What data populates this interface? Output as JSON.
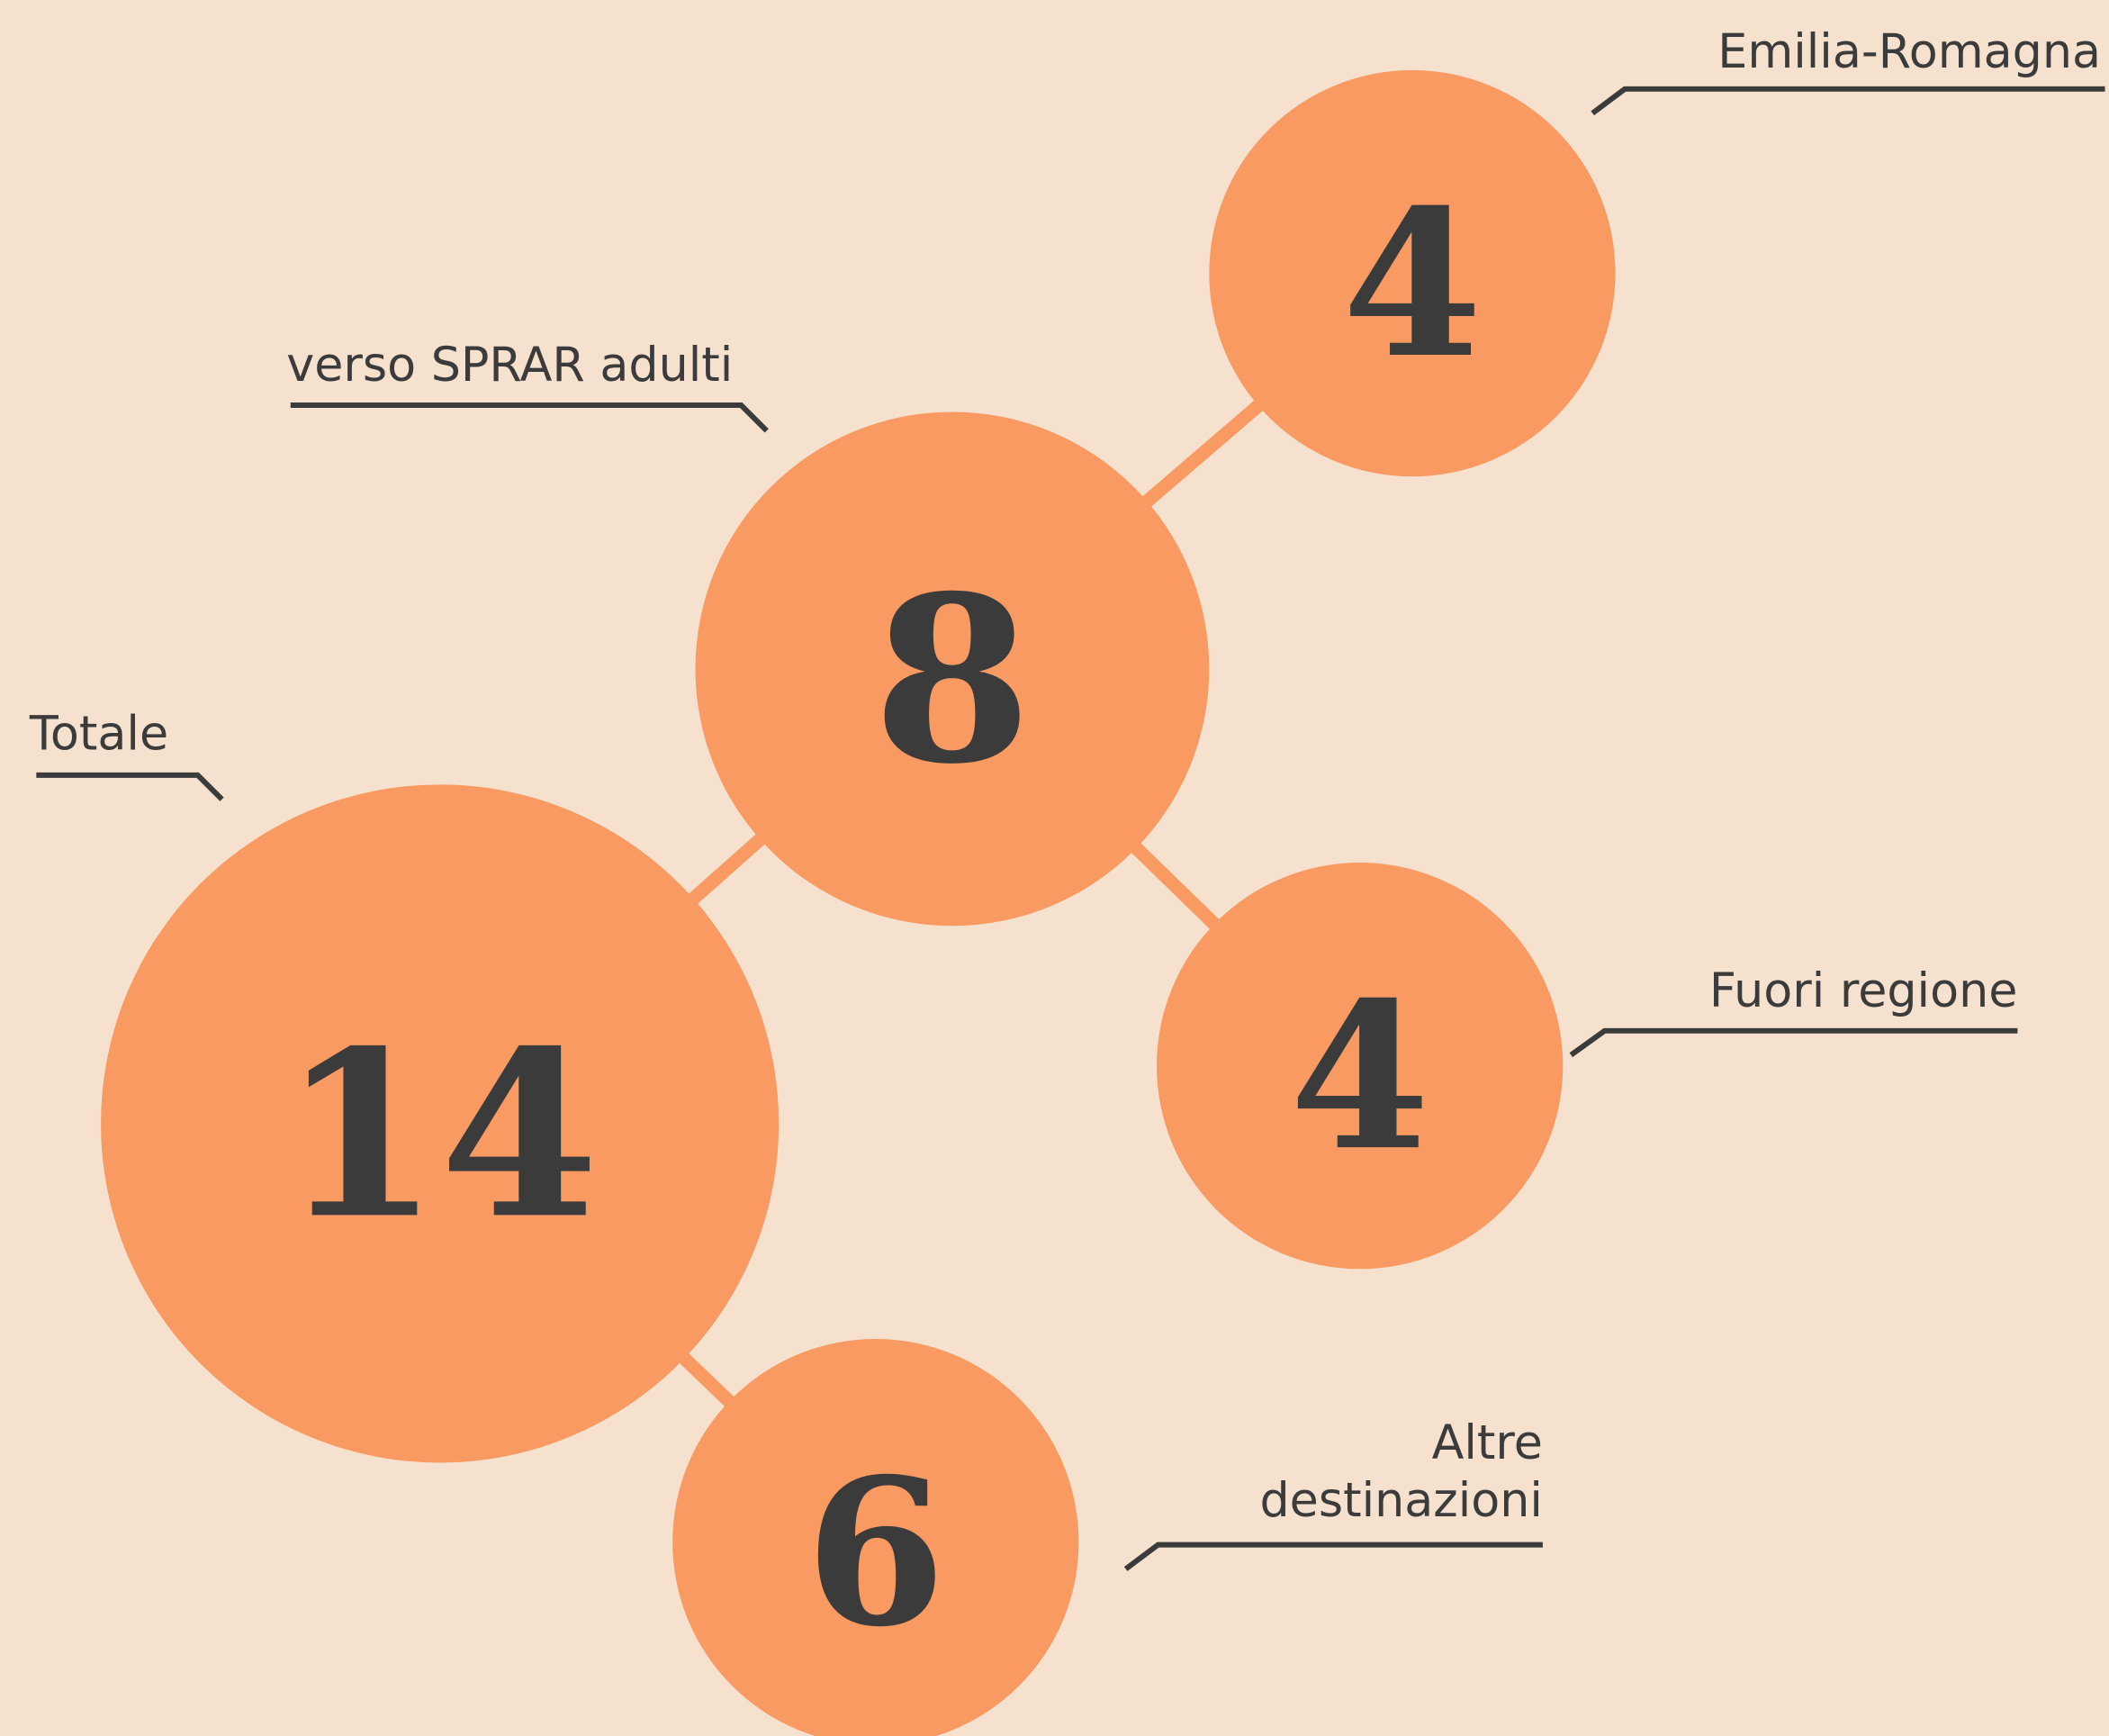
{
  "nodes": [
    {
      "label": [
        "Totale"
      ],
      "value": 14
    },
    {
      "label": [
        "verso SPRAR adulti"
      ],
      "value": 8
    },
    {
      "label": [
        "Emilia-Romagna"
      ],
      "value": 4
    },
    {
      "label": [
        "Fuori regione"
      ],
      "value": 4
    },
    {
      "label": [
        "Altre",
        "destinazioni"
      ],
      "value": 6
    }
  ]
}
